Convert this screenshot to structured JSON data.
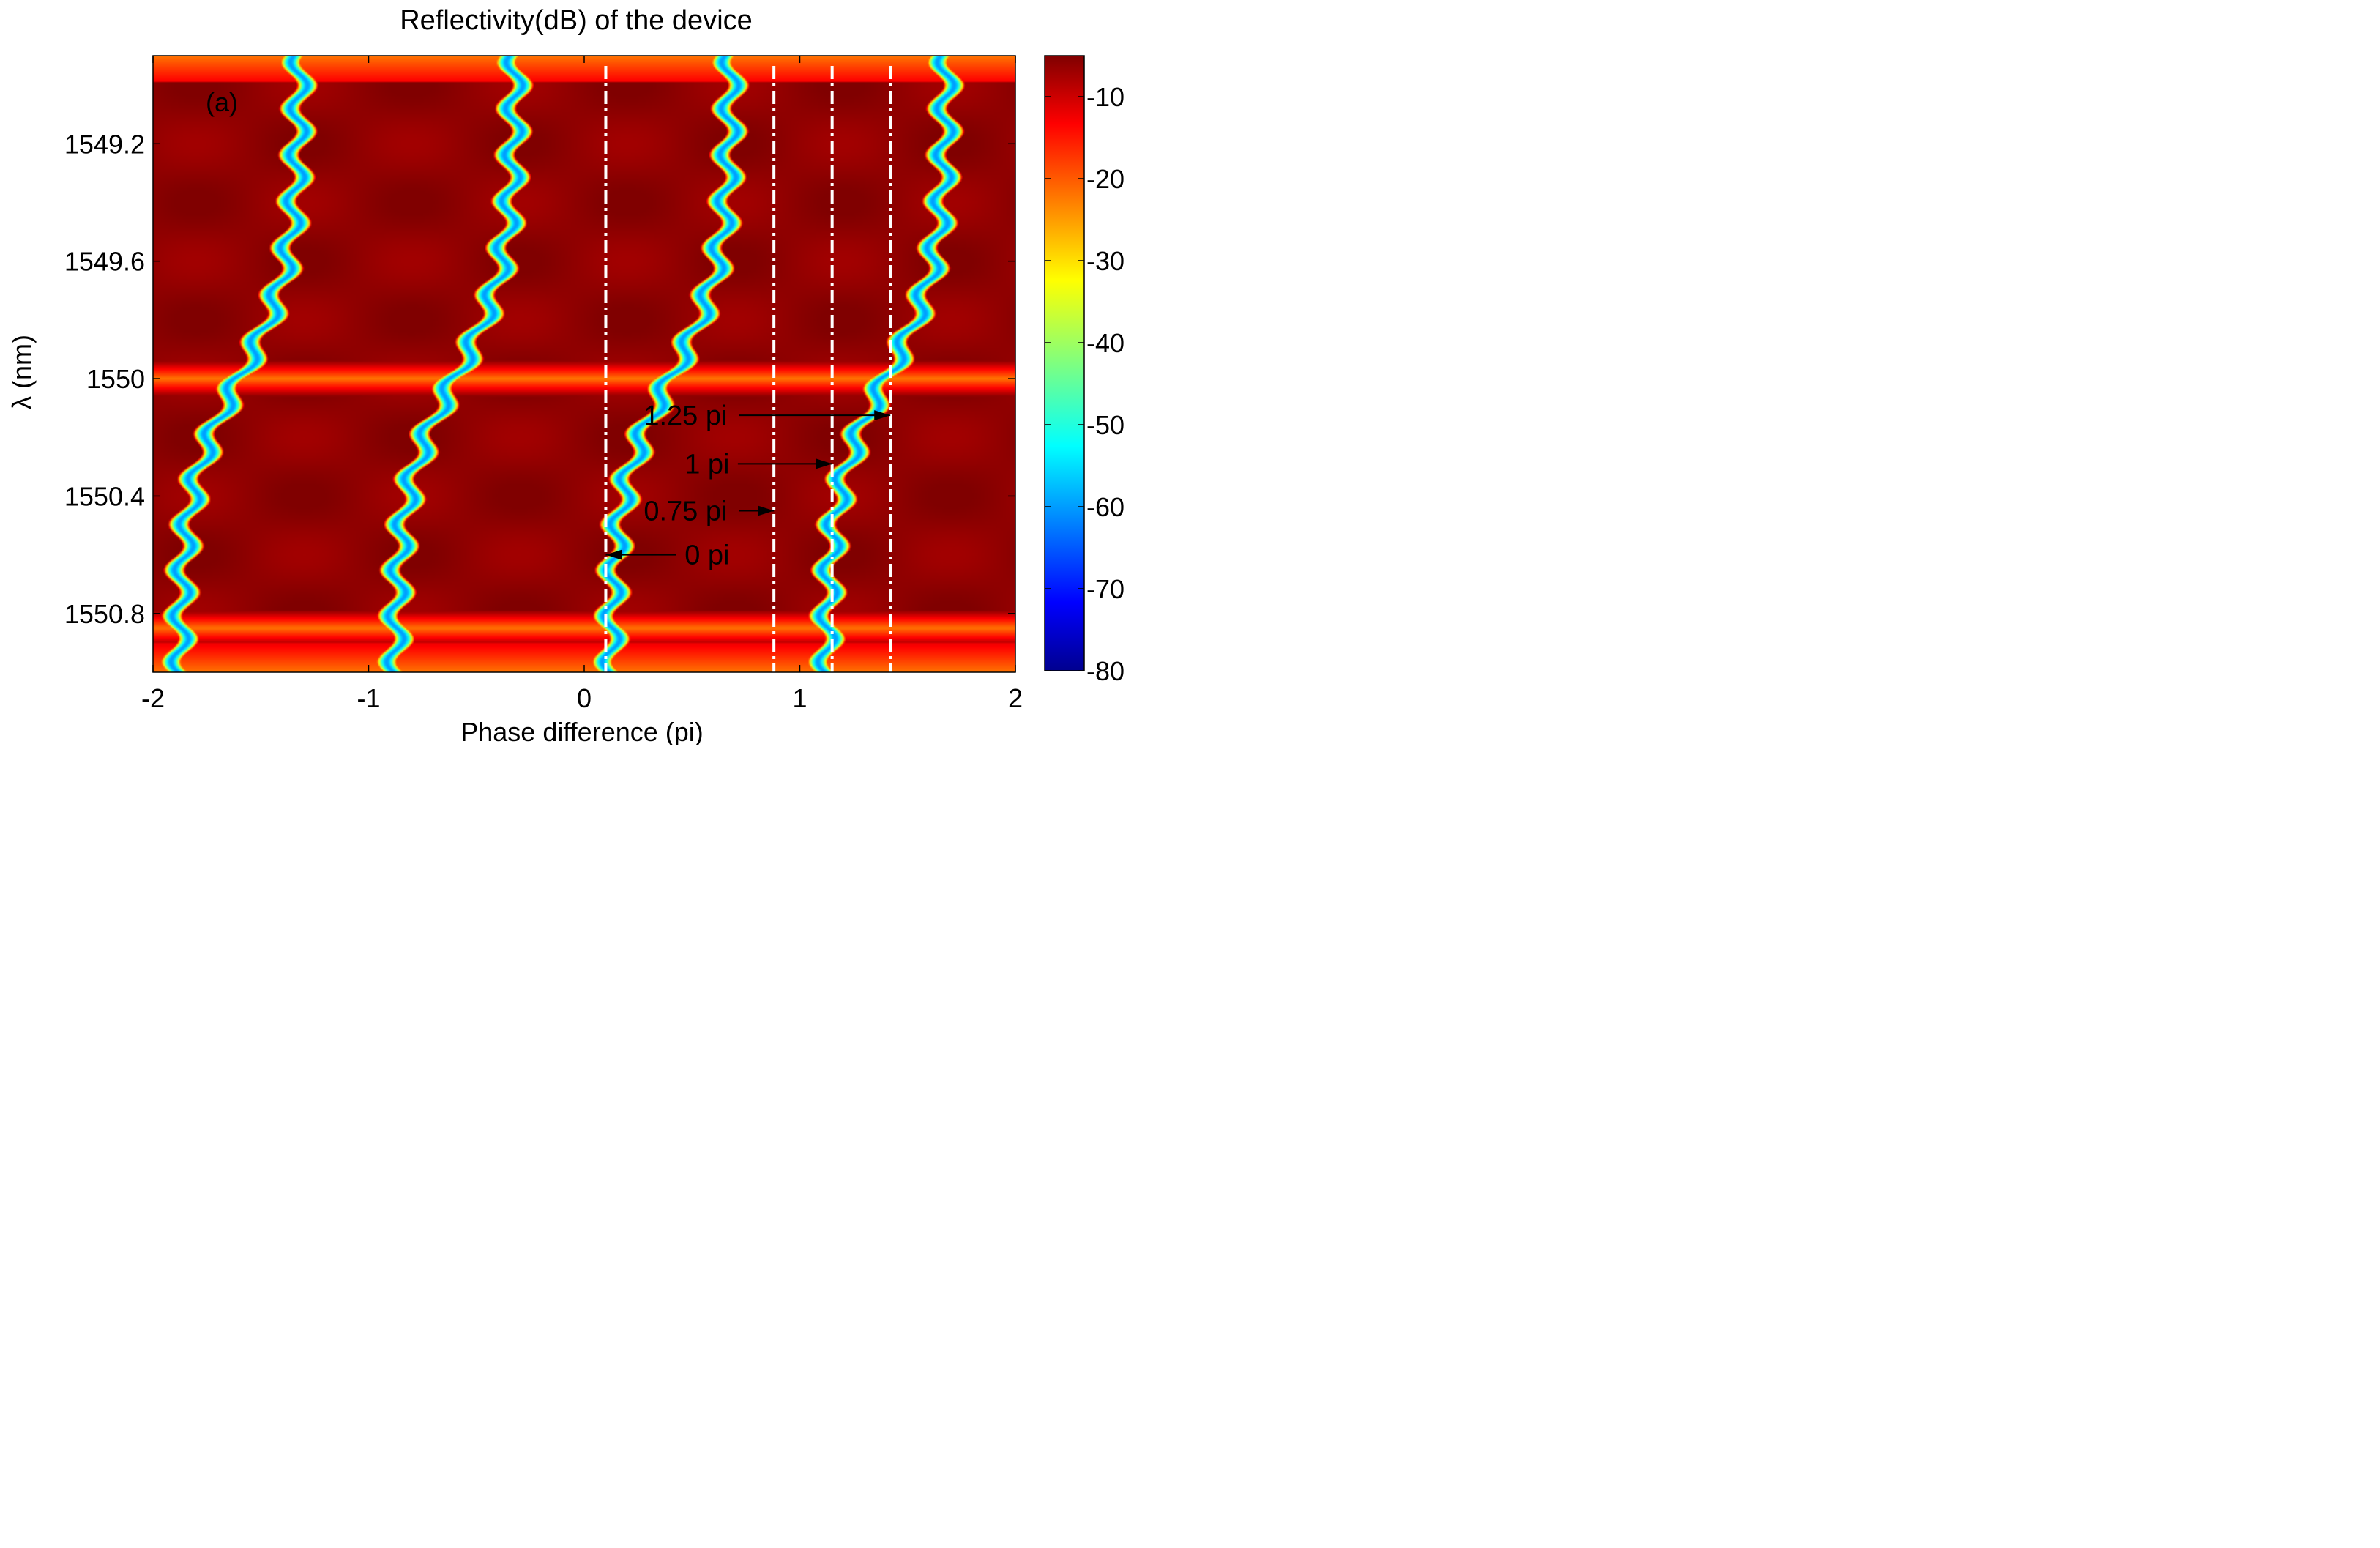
{
  "chart_data": {
    "type": "heatmap",
    "title": "Reflectivity(dB) of the device",
    "panel_label": "(a)",
    "xlabel": "Phase difference (pi)",
    "ylabel": "λ (nm)",
    "xlim": [
      -2,
      2
    ],
    "ylim": [
      1548.9,
      1551.0
    ],
    "y_reversed": true,
    "x_ticks": [
      -2,
      -1,
      0,
      1,
      2
    ],
    "x_tick_labels": [
      "-2",
      "-1",
      "0",
      "1",
      "2"
    ],
    "y_ticks": [
      1549.2,
      1549.6,
      1550,
      1550.4,
      1550.8
    ],
    "y_tick_labels": [
      "1549.2",
      "1549.6",
      "1550",
      "1550.4",
      "1550.8"
    ],
    "colorbar": {
      "range": [
        -80,
        -5
      ],
      "colormap": "jet",
      "ticks": [
        -10,
        -20,
        -30,
        -40,
        -50,
        -60,
        -70,
        -80
      ],
      "tick_labels": [
        "-10",
        "-20",
        "-30",
        "-40",
        "-50",
        "-60",
        "-70",
        "-80"
      ]
    },
    "field": {
      "period_x": 1,
      "resonance_lambda": [
        1548.85,
        1550.0,
        1550.85
      ],
      "branch_offsets": [
        -1.6,
        -0.6,
        0.4,
        1.4
      ],
      "null_value_db": -60,
      "plateau_value_db": -6,
      "edge_band_value_db": -22
    },
    "cut_lines": [
      {
        "x": 0.1,
        "label": "0 pi"
      },
      {
        "x": 0.88,
        "label": "0.75 pi"
      },
      {
        "x": 1.15,
        "label": "1 pi"
      },
      {
        "x": 1.42,
        "label": "1.25 pi"
      }
    ],
    "annotations": [
      {
        "text": "1.25 pi",
        "x": 0.47,
        "y": 1550.125,
        "arrow_to_x": 1.42,
        "arrow_side": "right"
      },
      {
        "text": "1 pi",
        "x": 0.57,
        "y": 1550.29,
        "arrow_to_x": 1.15,
        "arrow_side": "right"
      },
      {
        "text": "0.75 pi",
        "x": 0.47,
        "y": 1550.45,
        "arrow_to_x": 0.88,
        "arrow_side": "right"
      },
      {
        "text": "0 pi",
        "x": 0.57,
        "y": 1550.6,
        "arrow_to_x": 0.1,
        "arrow_side": "left"
      }
    ],
    "colors": {
      "cut_line": "#ffffff",
      "arrow": "#000000",
      "axis": "#000000"
    }
  }
}
